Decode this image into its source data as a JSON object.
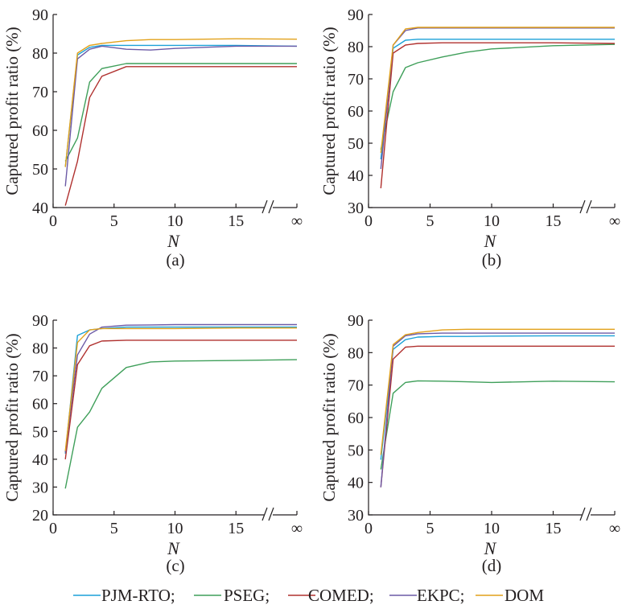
{
  "series_colors": {
    "PJM-RTO": "#1ba1d8",
    "PSEG": "#3f9f5a",
    "COMED": "#b0312f",
    "EKPC": "#6c5aa6",
    "DOM": "#e2a11a"
  },
  "legend": [
    {
      "name": "PJM-RTO",
      "label": "PJM-RTO;"
    },
    {
      "name": "PSEG",
      "label": "PSEG;"
    },
    {
      "name": "COMED",
      "label": "COMED;"
    },
    {
      "name": "EKPC",
      "label": "EKPC;"
    },
    {
      "name": "DOM",
      "label": "DOM"
    }
  ],
  "chart_data": [
    {
      "type": "line",
      "caption": "(a)",
      "xlabel": "N",
      "ylabel": "Captured profit ratio (%)",
      "xticks": [
        "0",
        "5",
        "10",
        "15",
        "∞"
      ],
      "yticks": [
        "40",
        "50",
        "60",
        "70",
        "80",
        "90"
      ],
      "ylim": [
        40,
        90
      ],
      "xlim": [
        0,
        20
      ],
      "series": [
        {
          "name": "PJM-RTO",
          "x": [
            1,
            2,
            3,
            4,
            6,
            8,
            10,
            15,
            20
          ],
          "y": [
            50.5,
            79.5,
            81.5,
            82,
            82,
            82,
            82,
            82,
            81.8
          ]
        },
        {
          "name": "PSEG",
          "x": [
            1,
            2,
            3,
            4,
            6,
            8,
            10,
            15,
            20
          ],
          "y": [
            52,
            58,
            72.5,
            76,
            77.3,
            77.3,
            77.3,
            77.3,
            77.3
          ]
        },
        {
          "name": "COMED",
          "x": [
            1,
            2,
            3,
            4,
            6,
            8,
            10,
            15,
            20
          ],
          "y": [
            40.5,
            52,
            68.5,
            74,
            76.5,
            76.5,
            76.5,
            76.5,
            76.5
          ]
        },
        {
          "name": "EKPC",
          "x": [
            1,
            2,
            3,
            4,
            6,
            8,
            10,
            15,
            20
          ],
          "y": [
            45.5,
            78.5,
            81,
            81.8,
            81,
            80.8,
            81.2,
            81.8,
            81.8
          ]
        },
        {
          "name": "DOM",
          "x": [
            1,
            2,
            3,
            4,
            6,
            8,
            10,
            15,
            20
          ],
          "y": [
            50.5,
            80,
            82,
            82.5,
            83.2,
            83.5,
            83.5,
            83.7,
            83.6
          ]
        }
      ]
    },
    {
      "type": "line",
      "caption": "(b)",
      "xlabel": "N",
      "ylabel": "Captured profit ratio (%)",
      "xticks": [
        "0",
        "5",
        "10",
        "15",
        "∞"
      ],
      "yticks": [
        "30",
        "40",
        "50",
        "60",
        "70",
        "80",
        "90"
      ],
      "ylim": [
        30,
        90
      ],
      "xlim": [
        0,
        20
      ],
      "series": [
        {
          "name": "PJM-RTO",
          "x": [
            1,
            2,
            3,
            4,
            6,
            8,
            10,
            15,
            20
          ],
          "y": [
            45,
            79.5,
            82,
            82.3,
            82.3,
            82.3,
            82.3,
            82.3,
            82.3
          ]
        },
        {
          "name": "PSEG",
          "x": [
            1,
            2,
            3,
            4,
            6,
            8,
            10,
            15,
            20
          ],
          "y": [
            48,
            66,
            73.5,
            75,
            76.8,
            78.3,
            79.3,
            80.3,
            80.7
          ]
        },
        {
          "name": "COMED",
          "x": [
            1,
            2,
            3,
            4,
            6,
            8,
            10,
            15,
            20
          ],
          "y": [
            36,
            78,
            80.5,
            81,
            81.2,
            81.2,
            81.2,
            81.2,
            81
          ]
        },
        {
          "name": "EKPC",
          "x": [
            1,
            2,
            3,
            4,
            6,
            8,
            10,
            15,
            20
          ],
          "y": [
            42,
            80.5,
            85,
            85.8,
            85.8,
            85.8,
            85.8,
            85.8,
            85.8
          ]
        },
        {
          "name": "DOM",
          "x": [
            1,
            2,
            3,
            4,
            6,
            8,
            10,
            15,
            20
          ],
          "y": [
            47,
            80.5,
            85.5,
            86,
            86,
            86,
            86,
            86,
            86
          ]
        }
      ]
    },
    {
      "type": "line",
      "caption": "(c)",
      "xlabel": "N",
      "ylabel": "Captured profit ratio (%)",
      "xticks": [
        "0",
        "5",
        "10",
        "15",
        "∞"
      ],
      "yticks": [
        "20",
        "30",
        "40",
        "50",
        "60",
        "70",
        "80",
        "90"
      ],
      "ylim": [
        20,
        90
      ],
      "xlim": [
        0,
        20
      ],
      "series": [
        {
          "name": "PJM-RTO",
          "x": [
            1,
            2,
            3,
            4,
            6,
            8,
            10,
            15,
            20
          ],
          "y": [
            42,
            84.5,
            86.5,
            87,
            87.5,
            87.5,
            87.5,
            87.5,
            87.5
          ]
        },
        {
          "name": "PSEG",
          "x": [
            1,
            2,
            3,
            4,
            6,
            8,
            10,
            15,
            20
          ],
          "y": [
            29.5,
            51.5,
            57,
            65.5,
            73,
            75,
            75.3,
            75.5,
            75.8
          ]
        },
        {
          "name": "COMED",
          "x": [
            1,
            2,
            3,
            4,
            6,
            8,
            10,
            15,
            20
          ],
          "y": [
            40,
            74,
            80.8,
            82.5,
            82.8,
            82.8,
            82.8,
            82.8,
            82.8
          ]
        },
        {
          "name": "EKPC",
          "x": [
            1,
            2,
            3,
            4,
            6,
            8,
            10,
            15,
            20
          ],
          "y": [
            42.5,
            77.5,
            85,
            87.5,
            88.2,
            88.3,
            88.4,
            88.4,
            88.4
          ]
        },
        {
          "name": "DOM",
          "x": [
            1,
            2,
            3,
            4,
            6,
            8,
            10,
            15,
            20
          ],
          "y": [
            43,
            82,
            86.5,
            87,
            87,
            87,
            87,
            87.2,
            87.2
          ]
        }
      ]
    },
    {
      "type": "line",
      "caption": "(d)",
      "xlabel": "N",
      "ylabel": "Captured profit ratio (%)",
      "xticks": [
        "0",
        "5",
        "10",
        "15",
        "∞"
      ],
      "yticks": [
        "30",
        "40",
        "50",
        "60",
        "70",
        "80",
        "90"
      ],
      "ylim": [
        30,
        90
      ],
      "xlim": [
        0,
        20
      ],
      "series": [
        {
          "name": "PJM-RTO",
          "x": [
            1,
            2,
            3,
            4,
            6,
            8,
            10,
            15,
            20
          ],
          "y": [
            47,
            81,
            84,
            84.8,
            85,
            85,
            85.1,
            85.2,
            85.2
          ]
        },
        {
          "name": "PSEG",
          "x": [
            1,
            2,
            3,
            4,
            6,
            8,
            10,
            15,
            20
          ],
          "y": [
            44,
            67.5,
            70.8,
            71.3,
            71.2,
            71,
            70.8,
            71.2,
            71
          ]
        },
        {
          "name": "COMED",
          "x": [
            1,
            2,
            3,
            4,
            6,
            8,
            10,
            15,
            20
          ],
          "y": [
            38.5,
            78,
            81.7,
            82,
            82,
            82,
            82,
            82,
            82
          ]
        },
        {
          "name": "EKPC",
          "x": [
            1,
            2,
            3,
            4,
            6,
            8,
            10,
            15,
            20
          ],
          "y": [
            38.5,
            82,
            85.2,
            85.8,
            86,
            86,
            86,
            86,
            86
          ]
        },
        {
          "name": "DOM",
          "x": [
            1,
            2,
            3,
            4,
            6,
            8,
            10,
            15,
            20
          ],
          "y": [
            48.5,
            82.5,
            85.5,
            86.2,
            87,
            87.2,
            87.2,
            87.2,
            87.2
          ]
        }
      ]
    }
  ]
}
